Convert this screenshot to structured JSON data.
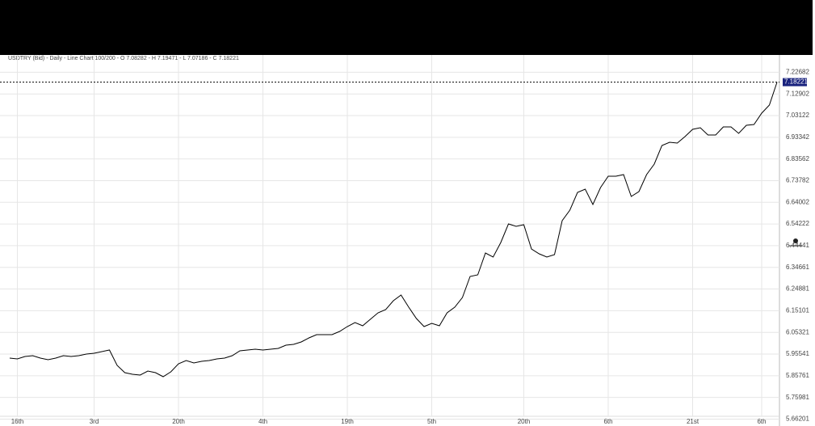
{
  "chart_data": {
    "type": "line",
    "title": "USDTRY (Bid) - Daily - Line Chart  100/200 - O 7.08282 - H 7.19471 - L 7.07186 - C 7.18221",
    "categories": [
      null,
      "16th",
      null,
      null,
      null,
      null,
      null,
      null,
      null,
      null,
      null,
      "3rd",
      null,
      null,
      null,
      null,
      null,
      null,
      null,
      null,
      null,
      null,
      "20th",
      null,
      null,
      null,
      null,
      null,
      null,
      null,
      null,
      null,
      null,
      "4th",
      null,
      null,
      null,
      null,
      null,
      null,
      null,
      null,
      null,
      null,
      "19th",
      null,
      null,
      null,
      null,
      null,
      null,
      null,
      null,
      null,
      null,
      "5th",
      null,
      null,
      null,
      null,
      null,
      null,
      null,
      null,
      null,
      null,
      null,
      "20th",
      null,
      null,
      null,
      null,
      null,
      null,
      null,
      null,
      null,
      null,
      "6th",
      null,
      null,
      null,
      null,
      null,
      null,
      null,
      null,
      null,
      null,
      "21st",
      null,
      null,
      null,
      null,
      null,
      null,
      null,
      null,
      "6th",
      null,
      null
    ],
    "values": [
      5.9372,
      5.9335,
      5.9445,
      5.9481,
      5.9372,
      5.9299,
      5.9372,
      5.9481,
      5.9445,
      5.9481,
      5.9554,
      5.9591,
      5.9664,
      5.9737,
      5.9044,
      5.8715,
      5.8642,
      5.8606,
      5.8788,
      5.8715,
      5.8533,
      5.8752,
      5.9116,
      5.9262,
      5.9153,
      5.9226,
      5.9262,
      5.9335,
      5.9372,
      5.9481,
      5.97,
      5.9737,
      5.9773,
      5.9737,
      5.9773,
      5.9809,
      5.9955,
      5.9992,
      6.0101,
      6.0283,
      6.0429,
      6.0429,
      6.0429,
      6.0575,
      6.0794,
      6.0976,
      6.083,
      6.1122,
      6.1414,
      6.156,
      6.1961,
      6.2216,
      6.1669,
      6.1159,
      6.0794,
      6.094,
      6.083,
      6.1414,
      6.1669,
      6.2107,
      6.3055,
      6.3128,
      6.4113,
      6.393,
      6.4587,
      6.5426,
      6.5316,
      6.5389,
      6.4295,
      6.4076,
      6.393,
      6.404,
      6.5572,
      6.6046,
      6.6848,
      6.6994,
      6.6301,
      6.7067,
      6.7577,
      6.7577,
      6.765,
      6.6666,
      6.6885,
      6.765,
      6.8124,
      6.8963,
      6.9109,
      6.9072,
      6.9364,
      6.9692,
      6.9765,
      6.9437,
      6.9437,
      6.9802,
      6.9802,
      6.951,
      6.9875,
      6.9911,
      7.0422,
      7.0787,
      7.18221
    ],
    "color": "#000000",
    "ylim": [
      5.6491,
      7.3048
    ],
    "yticks": [
      5.66201,
      5.75981,
      5.85761,
      5.95541,
      6.05321,
      6.15101,
      6.24881,
      6.34661,
      6.44441,
      6.54222,
      6.64002,
      6.73782,
      6.83562,
      6.93342,
      7.03122,
      7.12902,
      7.22682
    ],
    "grid": true
  }
}
